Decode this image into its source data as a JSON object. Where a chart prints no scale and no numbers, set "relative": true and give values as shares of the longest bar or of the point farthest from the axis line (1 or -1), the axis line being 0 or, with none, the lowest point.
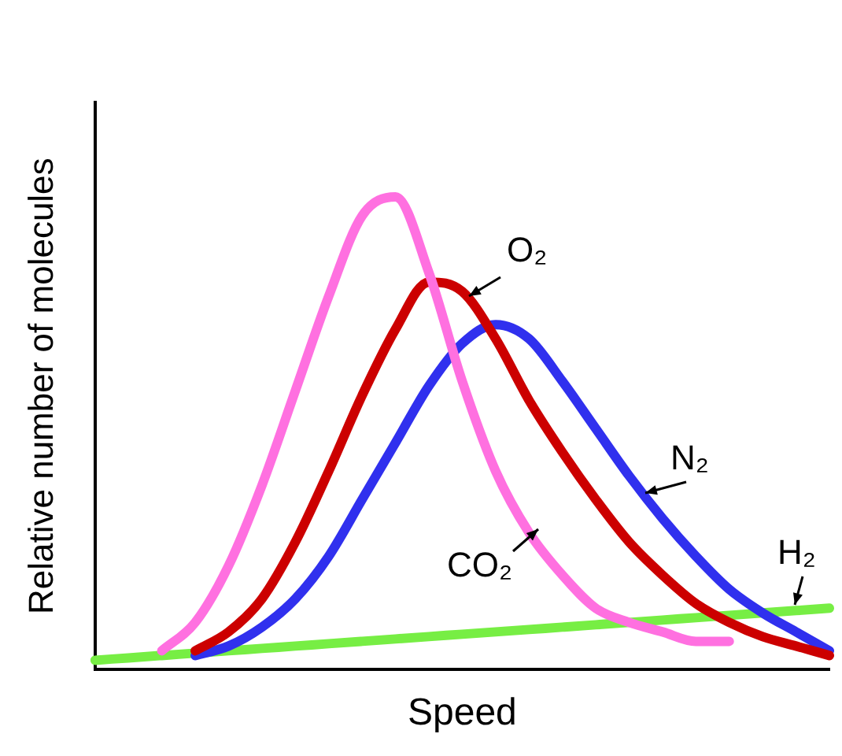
{
  "chart_data": {
    "type": "line",
    "relative": true,
    "xlabel": "Speed",
    "ylabel": "Relative number of molecules",
    "tick_labels": false,
    "categories": [
      null,
      null,
      null,
      null,
      null,
      null,
      null,
      null,
      null,
      null,
      null,
      null,
      null,
      null,
      null,
      null,
      null,
      null,
      null,
      null,
      null,
      null,
      null
    ],
    "series": [
      {
        "name": "CO₂",
        "color": "#ff70e0",
        "values": [
          null,
          null,
          0.04,
          0.1,
          0.22,
          0.39,
          0.59,
          0.79,
          0.96,
          1,
          0.84,
          0.61,
          0.42,
          0.29,
          0.2,
          0.13,
          0.1,
          0.08,
          0.06,
          0.06,
          null,
          null,
          null
        ]
      },
      {
        "name": "O₂",
        "color": "#cc0000",
        "values": [
          null,
          null,
          null,
          0.04,
          0.08,
          0.15,
          0.27,
          0.42,
          0.58,
          0.72,
          0.82,
          0.8,
          0.7,
          0.57,
          0.46,
          0.36,
          0.27,
          0.2,
          0.14,
          0.1,
          0.07,
          0.05,
          0.03
        ]
      },
      {
        "name": "N₂",
        "color": "#3030ee",
        "values": [
          null,
          null,
          null,
          0.03,
          0.05,
          0.09,
          0.15,
          0.24,
          0.36,
          0.48,
          0.6,
          0.69,
          0.73,
          0.7,
          0.61,
          0.51,
          0.41,
          0.32,
          0.24,
          0.17,
          0.12,
          0.08,
          0.04
        ]
      },
      {
        "name": "H₂",
        "color": "#77ee44",
        "values": [
          0.02,
          0.025,
          0.03,
          0.035,
          0.04,
          0.045,
          0.05,
          0.055,
          0.06,
          0.065,
          0.07,
          0.075,
          0.08,
          0.085,
          0.09,
          0.095,
          0.1,
          0.105,
          0.11,
          0.115,
          0.12,
          0.125,
          0.13
        ]
      }
    ]
  }
}
